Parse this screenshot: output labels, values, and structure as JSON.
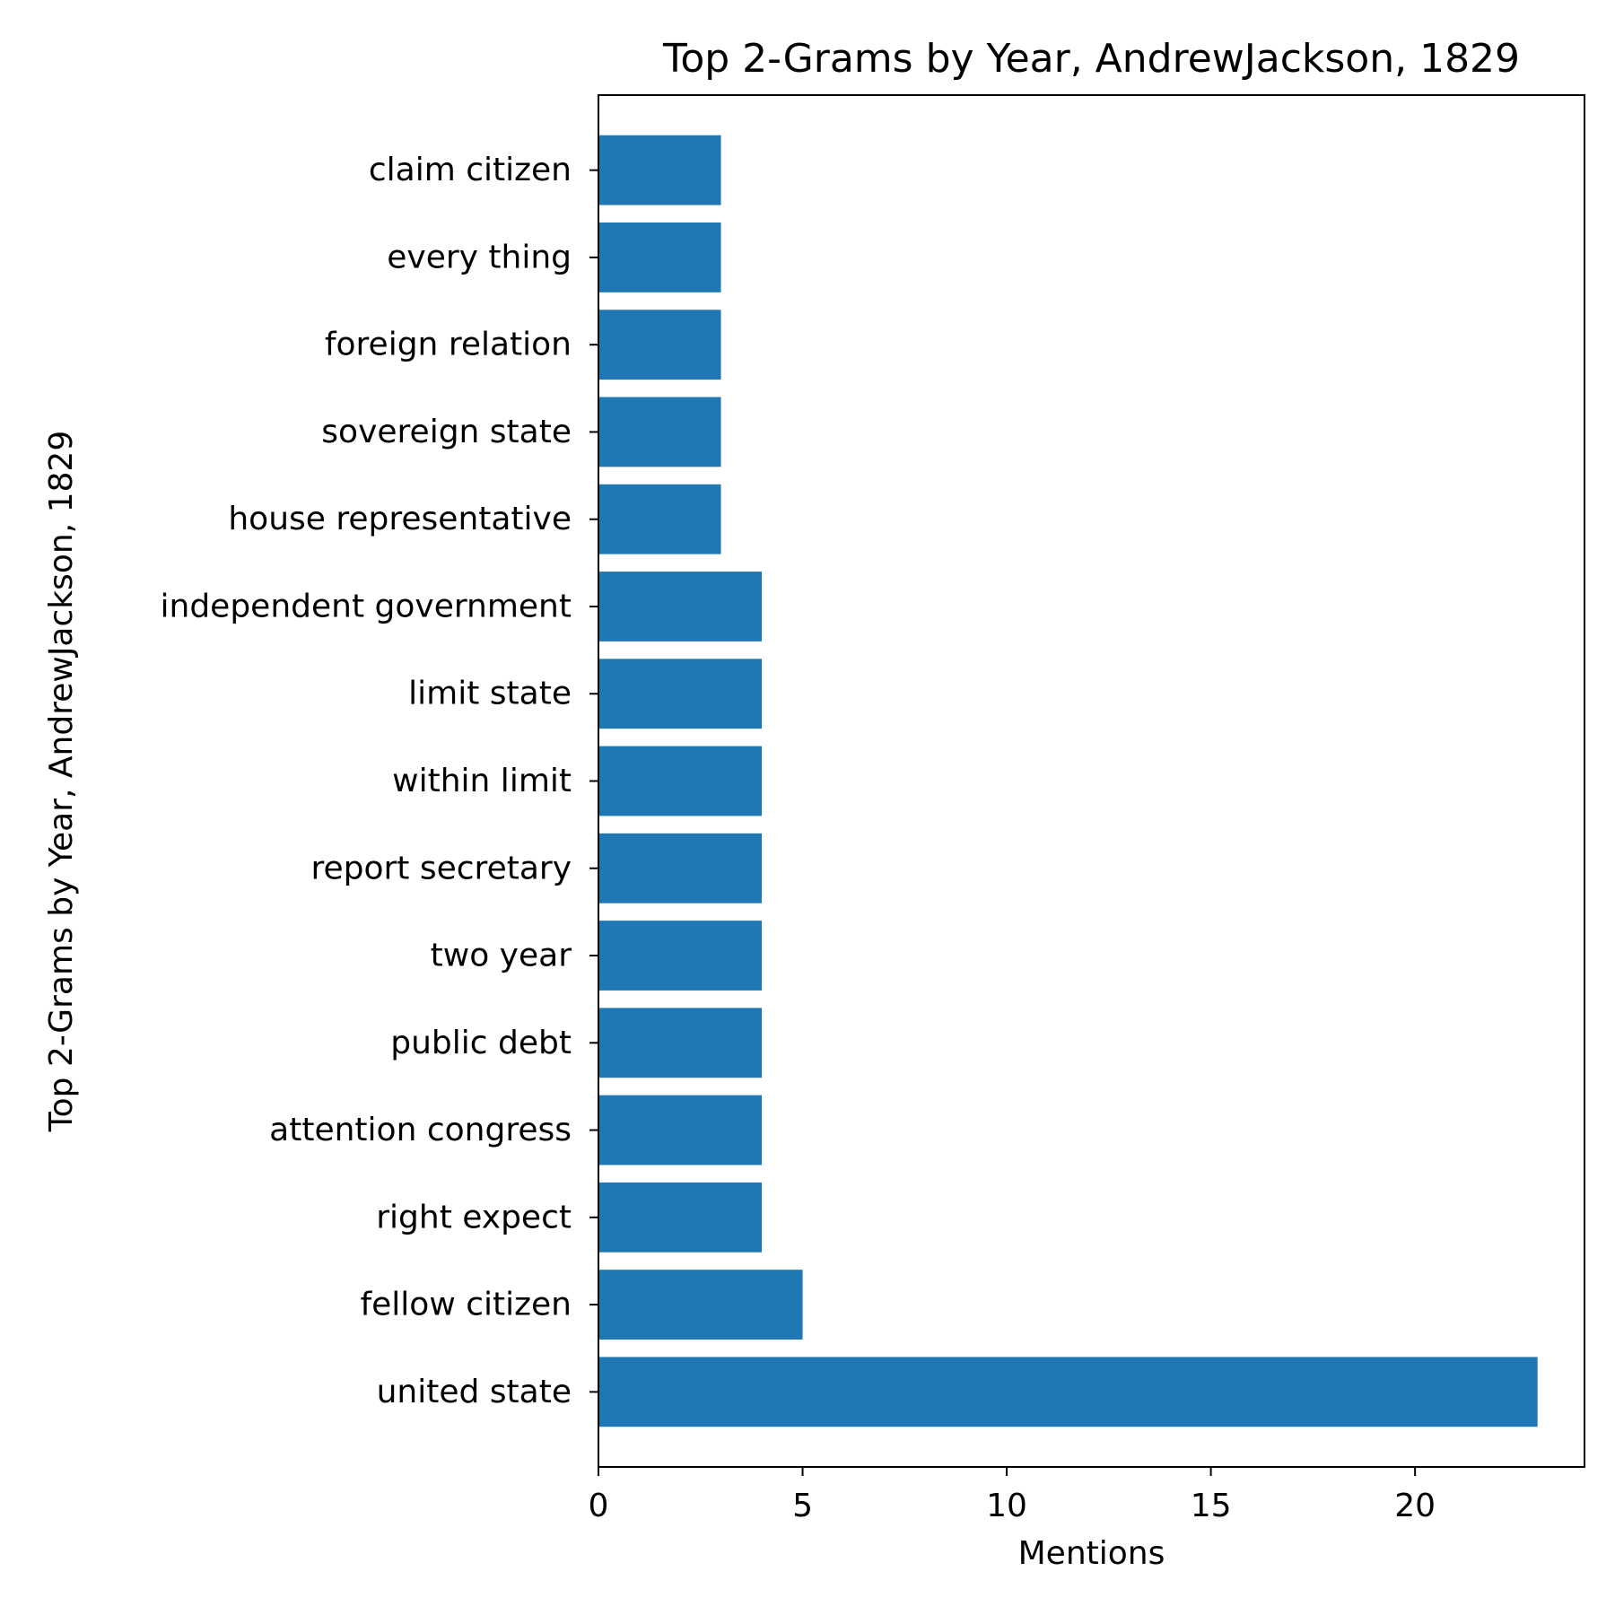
{
  "chart_data": {
    "type": "bar",
    "orientation": "horizontal",
    "title": "Top 2-Grams by Year, AndrewJackson, 1829",
    "xlabel": "Mentions",
    "ylabel": "Top 2-Grams by Year, AndrewJackson, 1829",
    "categories": [
      "united state",
      "fellow citizen",
      "right expect",
      "attention congress",
      "public debt",
      "two year",
      "report secretary",
      "within limit",
      "limit state",
      "independent government",
      "house representative",
      "sovereign state",
      "foreign relation",
      "every thing",
      "claim citizen"
    ],
    "values": [
      23,
      5,
      4,
      4,
      4,
      4,
      4,
      4,
      4,
      4,
      3,
      3,
      3,
      3,
      3
    ],
    "xlim": [
      0,
      24.15
    ],
    "xticks": [
      0,
      5,
      10,
      15,
      20
    ],
    "grid": false,
    "legend": "none",
    "bar_color": "#1f77b4"
  }
}
